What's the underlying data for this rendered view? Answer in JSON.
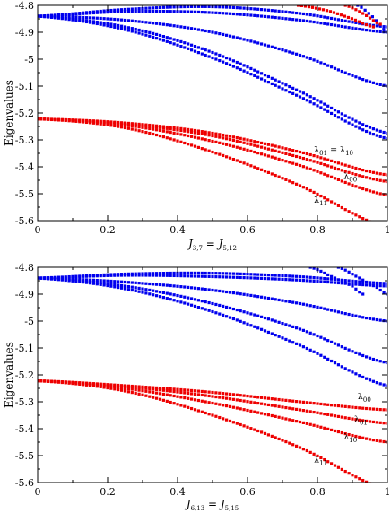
{
  "chart_data": [
    {
      "type": "scatter",
      "title": "",
      "xlabel_main": "J",
      "xlabel_sub1": "3,7",
      "xlabel_eq": " = J",
      "xlabel_sub2": "5,12",
      "ylabel": "Eigenvalues",
      "xlim": [
        0,
        1
      ],
      "ylim": [
        -5.6,
        -4.8
      ],
      "xticks": [
        "0",
        "0.2",
        "0.4",
        "0.6",
        "0.8",
        "1"
      ],
      "yticks": [
        "-4.8",
        "-4.9",
        "-5",
        "-5.1",
        "-5.2",
        "-5.3",
        "-5.4",
        "-5.5",
        "-5.6"
      ],
      "series": [
        {
          "color": "#0000ee",
          "x": [
            0,
            0.25,
            0.5,
            0.75,
            1
          ],
          "values": [
            -4.84,
            -4.815,
            -4.805,
            -4.83,
            -4.88
          ]
        },
        {
          "color": "#0000ee",
          "x": [
            0,
            0.25,
            0.5,
            0.75,
            1
          ],
          "values": [
            -4.84,
            -4.823,
            -4.827,
            -4.855,
            -4.9
          ]
        },
        {
          "color": "#0000ee",
          "x": [
            0,
            0.25,
            0.5,
            0.75,
            1
          ],
          "values": [
            -4.84,
            -4.855,
            -4.9,
            -4.985,
            -5.1
          ]
        },
        {
          "color": "#0000ee",
          "x": [
            0,
            0.25,
            0.5,
            0.75,
            1
          ],
          "values": [
            -4.84,
            -4.88,
            -4.975,
            -5.12,
            -5.275
          ]
        },
        {
          "color": "#0000ee",
          "x": [
            0,
            0.25,
            0.5,
            0.75,
            1
          ],
          "values": [
            -4.84,
            -4.89,
            -4.995,
            -5.14,
            -5.295
          ]
        },
        {
          "color": "#0000ee",
          "x": [
            0.915,
            0.96,
            1
          ],
          "values": [
            -4.8,
            -4.845,
            -4.9
          ]
        },
        {
          "color": "#ee0000",
          "x": [
            0,
            0.25,
            0.5,
            0.75,
            1
          ],
          "values": [
            -5.222,
            -5.237,
            -5.275,
            -5.345,
            -5.43
          ]
        },
        {
          "color": "#ee0000",
          "x": [
            0,
            0.25,
            0.5,
            0.75,
            1
          ],
          "values": [
            -5.222,
            -5.24,
            -5.285,
            -5.365,
            -5.455
          ]
        },
        {
          "color": "#ee0000",
          "x": [
            0,
            0.25,
            0.5,
            0.75,
            1
          ],
          "values": [
            -5.222,
            -5.245,
            -5.305,
            -5.395,
            -5.505
          ]
        },
        {
          "color": "#ee0000",
          "x": [
            0,
            0.25,
            0.5,
            0.75,
            1
          ],
          "values": [
            -5.222,
            -5.255,
            -5.345,
            -5.47,
            -5.625
          ]
        },
        {
          "color": "#ee0000",
          "x": [
            0.745,
            0.83,
            0.9,
            0.96
          ],
          "values": [
            -4.8,
            -4.82,
            -4.85,
            -4.88
          ]
        },
        {
          "color": "#ee0000",
          "x": [
            0.88,
            0.93,
            0.98
          ],
          "values": [
            -4.8,
            -4.83,
            -4.87
          ]
        }
      ],
      "annotations": [
        {
          "parts": [
            {
              "t": "λ"
            },
            {
              "t": "01",
              "sub": true
            },
            {
              "t": " = λ"
            },
            {
              "t": "10",
              "sub": true
            }
          ],
          "x": 0.79,
          "y": -5.347
        },
        {
          "parts": [
            {
              "t": "λ"
            },
            {
              "t": "00",
              "sub": true
            }
          ],
          "x": 0.875,
          "y": -5.445
        },
        {
          "parts": [
            {
              "t": "λ"
            },
            {
              "t": "11",
              "sub": true
            }
          ],
          "x": 0.79,
          "y": -5.533
        }
      ]
    },
    {
      "type": "scatter",
      "title": "",
      "xlabel_main": "J",
      "xlabel_sub1": "6,13",
      "xlabel_eq": " = J",
      "xlabel_sub2": "5,15",
      "ylabel": "Eigenvalues",
      "xlim": [
        0,
        1
      ],
      "ylim": [
        -5.6,
        -4.8
      ],
      "xticks": [
        "0",
        "0.2",
        "0.4",
        "0.6",
        "0.8",
        "1"
      ],
      "yticks": [
        "-4.8",
        "-4.9",
        "-5",
        "-5.1",
        "-5.2",
        "-5.3",
        "-5.4",
        "-5.5",
        "-5.6"
      ],
      "series": [
        {
          "color": "#0000ee",
          "x": [
            0,
            0.25,
            0.5,
            0.75,
            1
          ],
          "values": [
            -4.84,
            -4.825,
            -4.822,
            -4.835,
            -4.86
          ]
        },
        {
          "color": "#0000ee",
          "x": [
            0,
            0.25,
            0.5,
            0.75,
            1
          ],
          "values": [
            -4.84,
            -4.83,
            -4.835,
            -4.848,
            -4.87
          ]
        },
        {
          "color": "#0000ee",
          "x": [
            0,
            0.25,
            0.5,
            0.75,
            1
          ],
          "values": [
            -4.84,
            -4.855,
            -4.885,
            -4.935,
            -5.0
          ]
        },
        {
          "color": "#0000ee",
          "x": [
            0,
            0.25,
            0.5,
            0.75,
            1
          ],
          "values": [
            -4.84,
            -4.87,
            -4.935,
            -5.03,
            -5.155
          ]
        },
        {
          "color": "#0000ee",
          "x": [
            0,
            0.25,
            0.5,
            0.75,
            1
          ],
          "values": [
            -4.84,
            -4.88,
            -4.965,
            -5.09,
            -5.24
          ]
        },
        {
          "color": "#0000ee",
          "x": [
            0.78,
            0.85,
            0.9,
            0.93
          ],
          "values": [
            -4.8,
            -4.84,
            -4.87,
            -4.9
          ]
        },
        {
          "color": "#0000ee",
          "x": [
            0.86,
            0.92,
            0.97,
            1
          ],
          "values": [
            -4.8,
            -4.84,
            -4.875,
            -4.9
          ]
        },
        {
          "color": "#ee0000",
          "x": [
            0,
            0.25,
            0.5,
            0.75,
            1
          ],
          "values": [
            -5.222,
            -5.24,
            -5.265,
            -5.3,
            -5.33
          ]
        },
        {
          "color": "#ee0000",
          "x": [
            0,
            0.25,
            0.5,
            0.75,
            1
          ],
          "values": [
            -5.222,
            -5.243,
            -5.28,
            -5.33,
            -5.38
          ]
        },
        {
          "color": "#ee0000",
          "x": [
            0,
            0.25,
            0.5,
            0.75,
            1
          ],
          "values": [
            -5.222,
            -5.25,
            -5.305,
            -5.375,
            -5.45
          ]
        },
        {
          "color": "#ee0000",
          "x": [
            0,
            0.25,
            0.5,
            0.75,
            1
          ],
          "values": [
            -5.222,
            -5.26,
            -5.35,
            -5.47,
            -5.625
          ]
        }
      ],
      "annotations": [
        {
          "parts": [
            {
              "t": "λ"
            },
            {
              "t": "00",
              "sub": true
            }
          ],
          "x": 0.915,
          "y": -5.29
        },
        {
          "parts": [
            {
              "t": "λ"
            },
            {
              "t": "01",
              "sub": true
            }
          ],
          "x": 0.905,
          "y": -5.375
        },
        {
          "parts": [
            {
              "t": "λ"
            },
            {
              "t": "10",
              "sub": true
            }
          ],
          "x": 0.875,
          "y": -5.44
        },
        {
          "parts": [
            {
              "t": "λ"
            },
            {
              "t": "11",
              "sub": true
            }
          ],
          "x": 0.79,
          "y": -5.525
        }
      ]
    }
  ]
}
